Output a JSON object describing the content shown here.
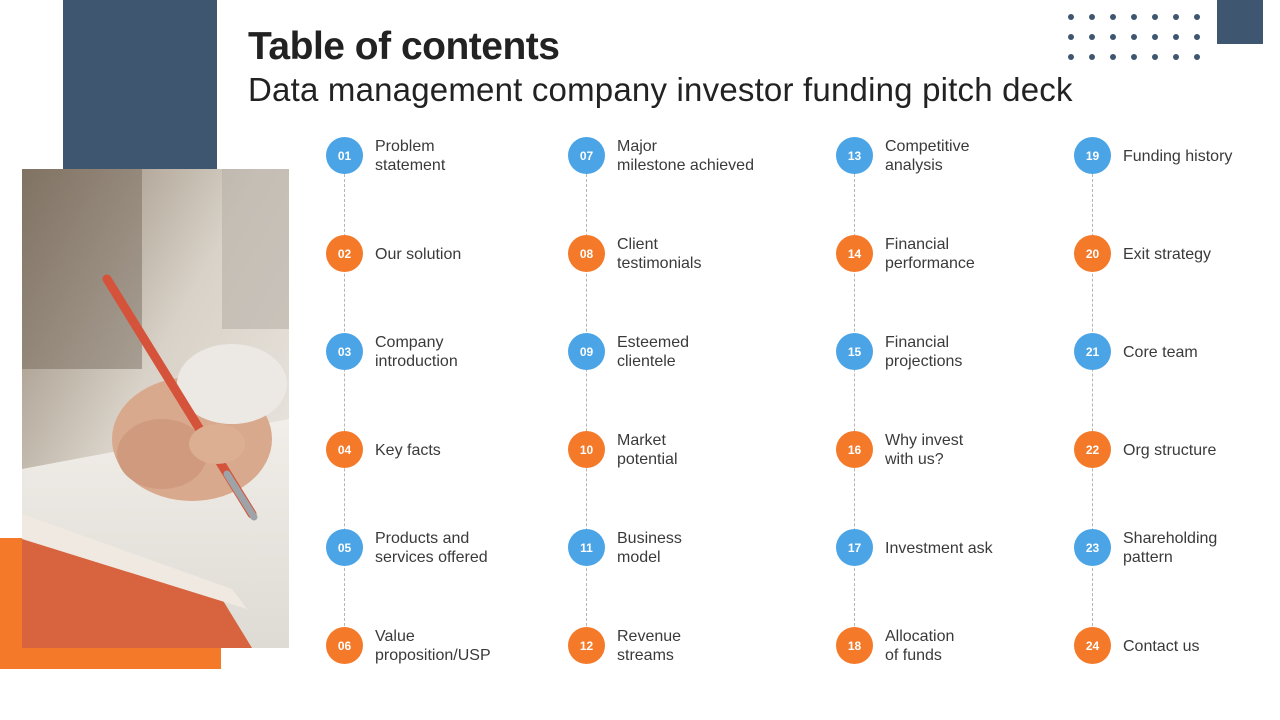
{
  "header": {
    "title": "Table of contents",
    "subtitle": "Data management company investor funding pitch deck"
  },
  "colors": {
    "navy": "#3f5670",
    "orange": "#f47a2a",
    "blue": "#4ba4e6"
  },
  "image": {
    "description_icon": "hand-writing-with-pen-photo"
  },
  "items": [
    {
      "num": "01",
      "label": "Problem\nstatement",
      "color": "blue"
    },
    {
      "num": "02",
      "label": "Our solution",
      "color": "orange"
    },
    {
      "num": "03",
      "label": "Company\nintroduction",
      "color": "blue"
    },
    {
      "num": "04",
      "label": "Key facts",
      "color": "orange"
    },
    {
      "num": "05",
      "label": "Products and\nservices offered",
      "color": "blue"
    },
    {
      "num": "06",
      "label": "Value\nproposition/USP",
      "color": "orange"
    },
    {
      "num": "07",
      "label": "Major\nmilestone achieved",
      "color": "blue"
    },
    {
      "num": "08",
      "label": "Client\ntestimonials",
      "color": "orange"
    },
    {
      "num": "09",
      "label": "Esteemed\nclientele",
      "color": "blue"
    },
    {
      "num": "10",
      "label": "Market\npotential",
      "color": "orange"
    },
    {
      "num": "11",
      "label": "Business\nmodel",
      "color": "blue"
    },
    {
      "num": "12",
      "label": "Revenue\nstreams",
      "color": "orange"
    },
    {
      "num": "13",
      "label": "Competitive\nanalysis",
      "color": "blue"
    },
    {
      "num": "14",
      "label": "Financial\nperformance",
      "color": "orange"
    },
    {
      "num": "15",
      "label": "Financial\nprojections",
      "color": "blue"
    },
    {
      "num": "16",
      "label": "Why invest\nwith us?",
      "color": "orange"
    },
    {
      "num": "17",
      "label": "Investment  ask",
      "color": "blue"
    },
    {
      "num": "18",
      "label": "Allocation\nof funds",
      "color": "orange"
    },
    {
      "num": "19",
      "label": "Funding history",
      "color": "blue"
    },
    {
      "num": "20",
      "label": "Exit strategy",
      "color": "orange"
    },
    {
      "num": "21",
      "label": "Core team",
      "color": "blue"
    },
    {
      "num": "22",
      "label": "Org structure",
      "color": "orange"
    },
    {
      "num": "23",
      "label": "Shareholding\npattern",
      "color": "blue"
    },
    {
      "num": "24",
      "label": "Contact us",
      "color": "orange"
    }
  ]
}
